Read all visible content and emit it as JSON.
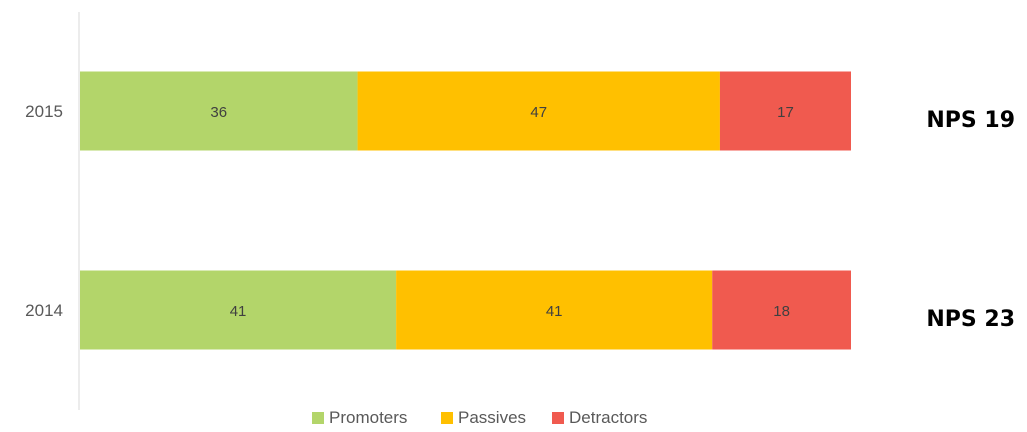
{
  "chart_data": {
    "type": "bar",
    "orientation": "horizontal",
    "stacked": true,
    "percent": true,
    "categories": [
      "2015",
      "2014"
    ],
    "series": [
      {
        "name": "Promoters",
        "values": [
          36,
          41
        ],
        "color": "#B3D56A"
      },
      {
        "name": "Passives",
        "values": [
          47,
          41
        ],
        "color": "#FFC000"
      },
      {
        "name": "Detractors",
        "values": [
          17,
          18
        ],
        "color": "#F05A4F"
      }
    ],
    "xlim": [
      0,
      100
    ],
    "grid": false,
    "legend_position": "bottom",
    "annotations": [
      "NPS 19",
      "NPS 23"
    ]
  }
}
